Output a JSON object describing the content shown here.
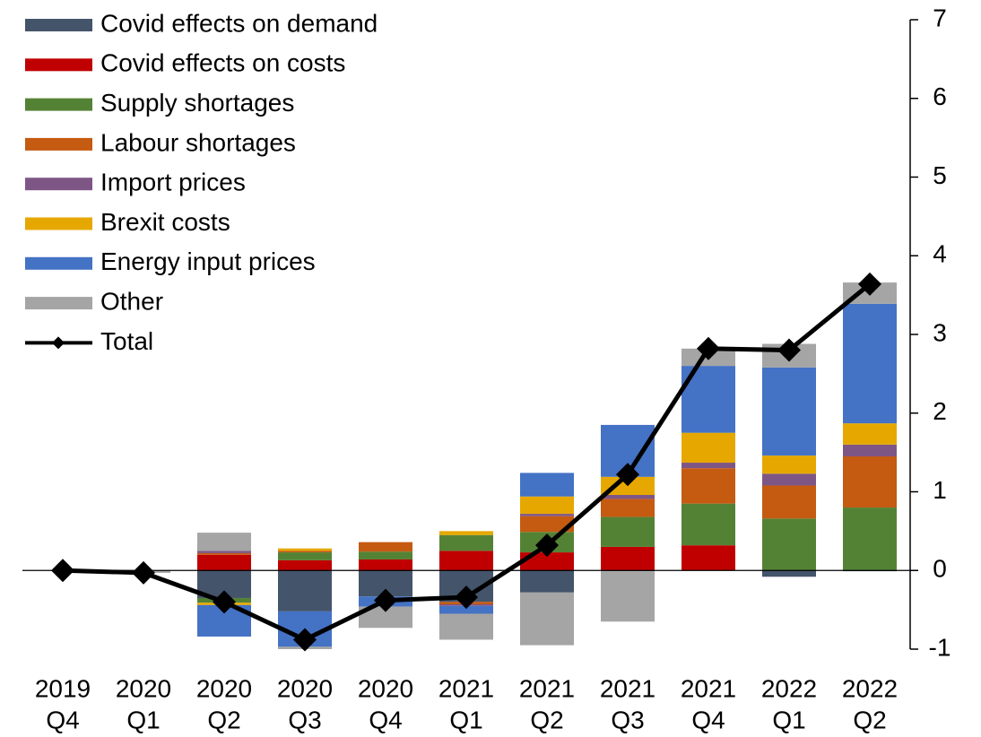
{
  "chart_data": {
    "type": "bar",
    "stacked": true,
    "legend": "top-left",
    "categories": [
      [
        "2019",
        "Q4"
      ],
      [
        "2020",
        "Q1"
      ],
      [
        "2020",
        "Q2"
      ],
      [
        "2020",
        "Q3"
      ],
      [
        "2020",
        "Q4"
      ],
      [
        "2021",
        "Q1"
      ],
      [
        "2021",
        "Q2"
      ],
      [
        "2021",
        "Q3"
      ],
      [
        "2021",
        "Q4"
      ],
      [
        "2022",
        "Q1"
      ],
      [
        "2022",
        "Q2"
      ]
    ],
    "ylim": [
      -1,
      7
    ],
    "yticks": [
      -1,
      0,
      1,
      2,
      3,
      4,
      5,
      6,
      7
    ],
    "series": [
      {
        "name": "Covid effects on demand",
        "color": "#44546a",
        "values": [
          0,
          0,
          -0.35,
          -0.52,
          -0.33,
          -0.4,
          -0.28,
          -0.01,
          0,
          -0.08,
          -0.01
        ]
      },
      {
        "name": "Covid effects on costs",
        "color": "#c00000",
        "values": [
          0,
          0,
          0.2,
          0.13,
          0.14,
          0.25,
          0.23,
          0.3,
          0.32,
          0,
          0
        ]
      },
      {
        "name": "Supply shortages",
        "color": "#548235",
        "values": [
          0,
          0,
          -0.06,
          0.1,
          0.1,
          0.2,
          0.26,
          0.38,
          0.53,
          0.66,
          0.8
        ]
      },
      {
        "name": "Labour shortages",
        "color": "#c55a11",
        "values": [
          0,
          0,
          0.02,
          0.02,
          0.12,
          -0.03,
          0.2,
          0.23,
          0.45,
          0.42,
          0.65
        ]
      },
      {
        "name": "Import prices",
        "color": "#7e5685",
        "values": [
          0,
          0,
          0.03,
          0,
          0,
          -0.02,
          0.03,
          0.05,
          0.07,
          0.15,
          0.15
        ]
      },
      {
        "name": "Brexit costs",
        "color": "#e6a800",
        "values": [
          0,
          0,
          -0.03,
          0.03,
          0,
          0.05,
          0.22,
          0.23,
          0.38,
          0.23,
          0.27
        ]
      },
      {
        "name": "Energy input prices",
        "color": "#4472c4",
        "values": [
          0,
          0,
          -0.4,
          -0.45,
          -0.13,
          -0.1,
          0.3,
          0.66,
          0.85,
          1.12,
          1.52
        ]
      },
      {
        "name": "Other",
        "color": "#a5a5a5",
        "values": [
          0,
          -0.03,
          0.23,
          -0.03,
          -0.27,
          -0.33,
          -0.67,
          -0.64,
          0.22,
          0.3,
          0.27
        ]
      },
      {
        "name": "Total",
        "type": "line",
        "color": "#000000",
        "values": [
          0,
          -0.03,
          -0.4,
          -0.88,
          -0.38,
          -0.34,
          0.32,
          1.22,
          2.82,
          2.8,
          3.64
        ]
      }
    ]
  }
}
